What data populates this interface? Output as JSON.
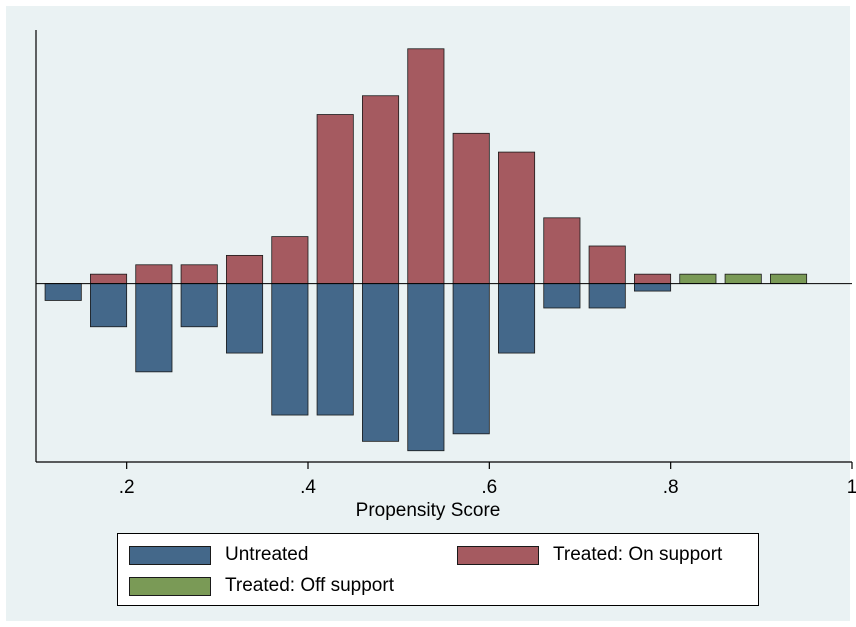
{
  "chart_data": {
    "type": "bar",
    "title": "",
    "xlabel": "Propensity Score",
    "ylabel": "",
    "xlim": [
      0.1,
      1.0
    ],
    "ylim": [
      -0.95,
      1.35
    ],
    "x_ticks": [
      {
        "value": 0.2,
        "label": ".2"
      },
      {
        "value": 0.4,
        "label": ".4"
      },
      {
        "value": 0.6,
        "label": ".6"
      },
      {
        "value": 0.8,
        "label": ".8"
      },
      {
        "value": 1.0,
        "label": "1"
      }
    ],
    "bin_width": 0.05,
    "bar_fraction": 0.8,
    "grid": false,
    "legend_position": "bottom",
    "baseline": 0,
    "series": [
      {
        "name": "Untreated",
        "color": "#44688a",
        "x": [
          0.13,
          0.18,
          0.23,
          0.28,
          0.33,
          0.38,
          0.43,
          0.48,
          0.53,
          0.58,
          0.63,
          0.68,
          0.73,
          0.78
        ],
        "values": [
          -0.09,
          -0.23,
          -0.47,
          -0.23,
          -0.37,
          -0.7,
          -0.7,
          -0.84,
          -0.89,
          -0.8,
          -0.37,
          -0.13,
          -0.13,
          -0.04
        ]
      },
      {
        "name": "Treated: On support",
        "color": "#a55a60",
        "x": [
          0.18,
          0.23,
          0.28,
          0.33,
          0.38,
          0.43,
          0.48,
          0.53,
          0.58,
          0.63,
          0.68,
          0.73,
          0.78
        ],
        "values": [
          0.05,
          0.1,
          0.1,
          0.15,
          0.25,
          0.9,
          1.0,
          1.25,
          0.8,
          0.7,
          0.35,
          0.2,
          0.05
        ]
      },
      {
        "name": "Treated: Off support",
        "color": "#7a9a56",
        "x": [
          0.83,
          0.88,
          0.93
        ],
        "values": [
          0.05,
          0.05,
          0.05
        ]
      }
    ]
  }
}
